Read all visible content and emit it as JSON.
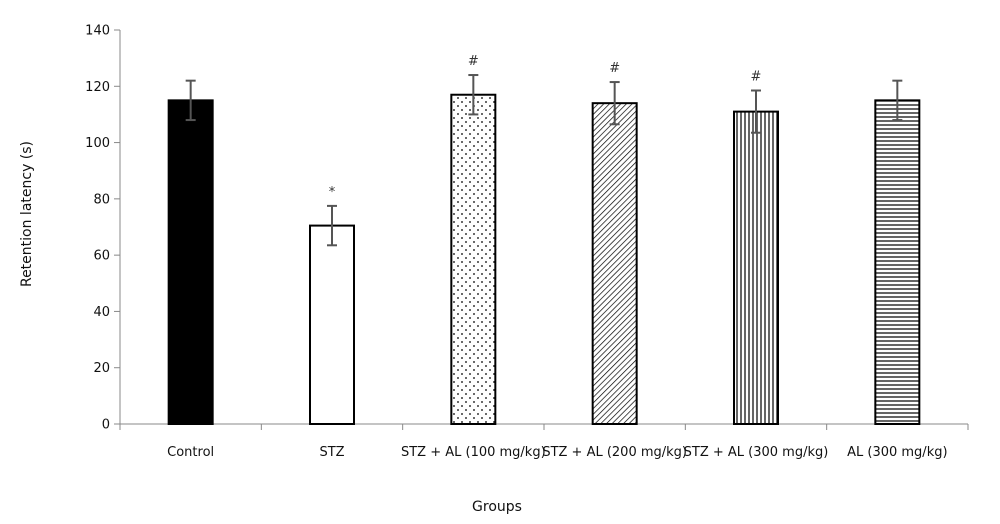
{
  "chart_data": {
    "type": "bar",
    "title": "",
    "xlabel": "Groups",
    "ylabel": "Retention latency (s)",
    "ylim": [
      0,
      140
    ],
    "yticks": [
      0,
      20,
      40,
      60,
      80,
      100,
      120,
      140
    ],
    "grid": false,
    "categories": [
      "Control",
      "STZ",
      "STZ + AL (100 mg/kg)",
      "STZ + AL (200 mg/kg)",
      "STZ + AL (300 mg/kg)",
      "AL (300 mg/kg)"
    ],
    "values": [
      115,
      70.5,
      117,
      114,
      111,
      115
    ],
    "errors": [
      7,
      7,
      7,
      7.5,
      7.5,
      7
    ],
    "annotations": [
      "",
      "*",
      "#",
      "#",
      "#",
      ""
    ],
    "patterns": [
      "solid-black",
      "white",
      "dots",
      "diagonal",
      "vertical",
      "horizontal"
    ],
    "colors": {
      "bar_stroke": "#000000",
      "error_bar": "#555555",
      "axis": "#888888"
    }
  }
}
